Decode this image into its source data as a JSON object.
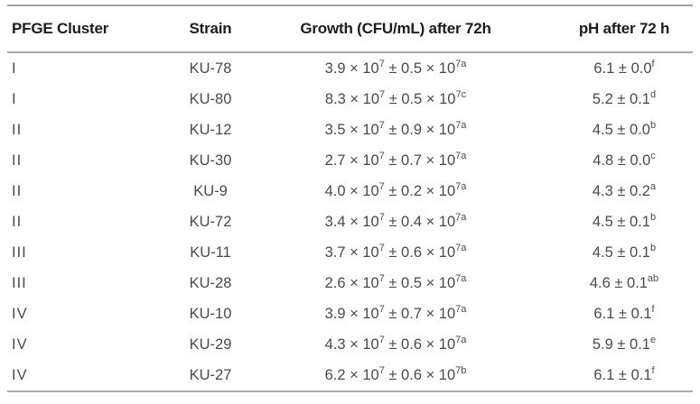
{
  "colors": {
    "background": "#ffffff",
    "header_text": "#1e1c1c",
    "body_text": "#4a4a4a",
    "rule": "#a3a3a3"
  },
  "table": {
    "headers": {
      "cluster": "PFGE Cluster",
      "strain": "Strain",
      "growth": "Growth (CFU/mL) after 72h",
      "ph": "pH after 72 h"
    },
    "rows": [
      {
        "cluster": "I",
        "strain": "KU-78",
        "g1": "3.9 × 10",
        "g1e": "7",
        "g2": " ± 0.5 × 10",
        "g2e": "7a",
        "ph": "6.1 ± 0.0",
        "phe": "f"
      },
      {
        "cluster": "I",
        "strain": "KU-80",
        "g1": "8.3 × 10",
        "g1e": "7",
        "g2": " ± 0.5 × 10",
        "g2e": "7c",
        "ph": "5.2 ± 0.1",
        "phe": "d"
      },
      {
        "cluster": "II",
        "strain": "KU-12",
        "g1": "3.5 × 10",
        "g1e": "7",
        "g2": " ± 0.9 × 10",
        "g2e": "7a",
        "ph": "4.5 ± 0.0",
        "phe": "b"
      },
      {
        "cluster": "II",
        "strain": "KU-30",
        "g1": "2.7 × 10",
        "g1e": "7",
        "g2": " ± 0.7 × 10",
        "g2e": "7a",
        "ph": "4.8 ± 0.0",
        "phe": "c"
      },
      {
        "cluster": "II",
        "strain": "KU-9",
        "g1": "4.0 × 10",
        "g1e": "7",
        "g2": " ± 0.2 × 10",
        "g2e": "7a",
        "ph": "4.3 ± 0.2",
        "phe": "a"
      },
      {
        "cluster": "II",
        "strain": "KU-72",
        "g1": "3.4 × 10",
        "g1e": "7",
        "g2": " ± 0.4 × 10",
        "g2e": "7a",
        "ph": "4.5 ± 0.1",
        "phe": "b"
      },
      {
        "cluster": "III",
        "strain": "KU-11",
        "g1": "3.7 × 10",
        "g1e": "7",
        "g2": " ± 0.6 × 10",
        "g2e": "7a",
        "ph": "4.5 ± 0.1",
        "phe": "b"
      },
      {
        "cluster": "III",
        "strain": "KU-28",
        "g1": "2.6 × 10",
        "g1e": "7",
        "g2": " ± 0.5 × 10",
        "g2e": "7a",
        "ph": "4.6 ± 0.1",
        "phe": "ab"
      },
      {
        "cluster": "IV",
        "strain": "KU-10",
        "g1": "3.9 × 10",
        "g1e": "7",
        "g2": " ± 0.7 × 10",
        "g2e": "7a",
        "ph": "6.1 ± 0.1",
        "phe": "f"
      },
      {
        "cluster": "IV",
        "strain": "KU-29",
        "g1": "4.3 × 10",
        "g1e": "7",
        "g2": " ± 0.6 × 10",
        "g2e": "7a",
        "ph": "5.9 ± 0.1",
        "phe": "e"
      },
      {
        "cluster": "IV",
        "strain": "KU-27",
        "g1": "6.2 × 10",
        "g1e": "7",
        "g2": " ± 0.6 × 10",
        "g2e": "7b",
        "ph": "6.1 ± 0.1",
        "phe": "f"
      }
    ]
  }
}
